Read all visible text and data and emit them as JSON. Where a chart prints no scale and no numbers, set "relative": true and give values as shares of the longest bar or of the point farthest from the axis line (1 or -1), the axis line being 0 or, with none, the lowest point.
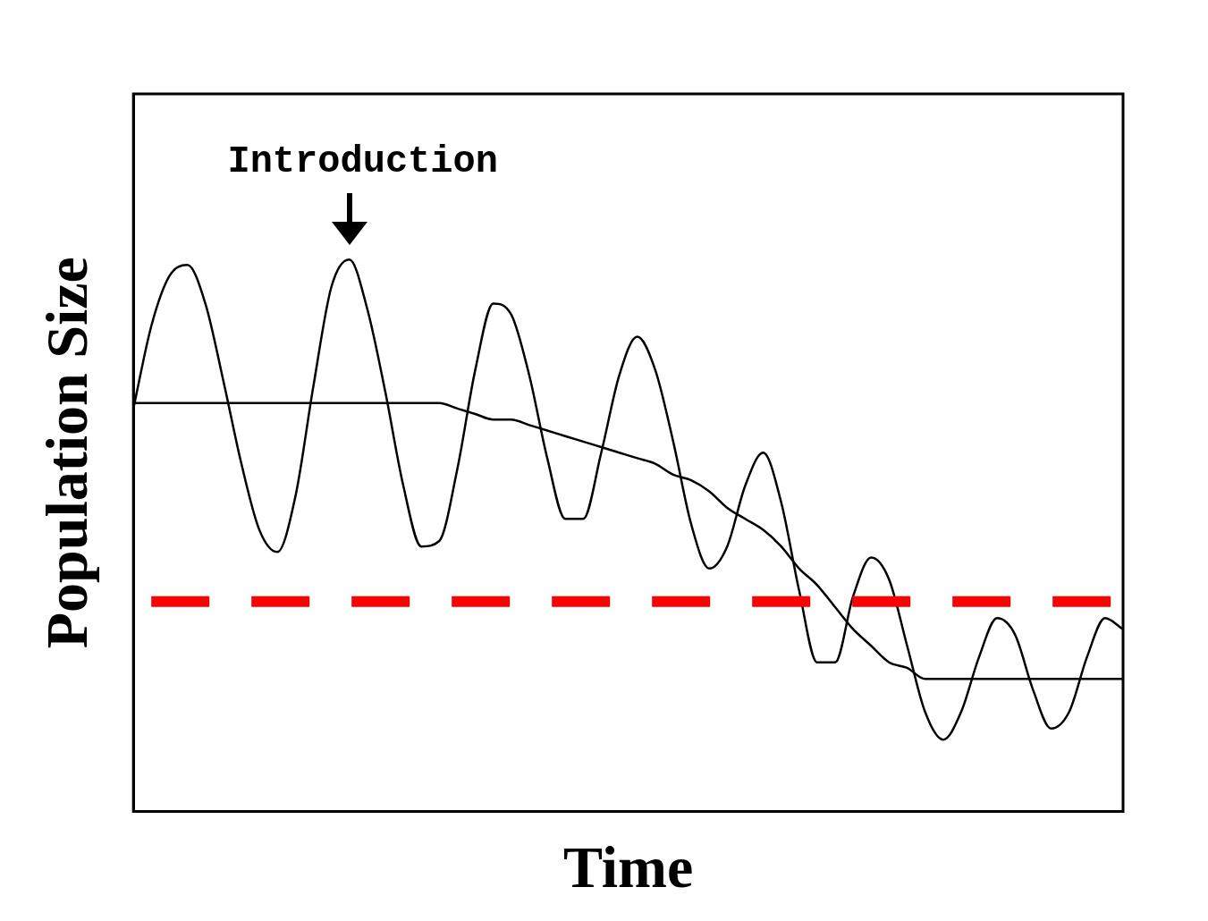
{
  "chart_data": {
    "type": "line",
    "xlabel": "Time",
    "ylabel": "Population Size",
    "relative": true,
    "legend": false,
    "grid": false,
    "marker": "none",
    "line_style": "solid",
    "categories": [
      null,
      null,
      null,
      null,
      null,
      null,
      null,
      null,
      null,
      null,
      null,
      null,
      null,
      null,
      null,
      null,
      null,
      null,
      null,
      null,
      null,
      null,
      null,
      null,
      null,
      null,
      null,
      null,
      null,
      null,
      null,
      null,
      null,
      null,
      null,
      null,
      null,
      null,
      null,
      null,
      null,
      null,
      null,
      null,
      null,
      null,
      null,
      null,
      null,
      null,
      null,
      null,
      null,
      null,
      null,
      null
    ],
    "series": [
      {
        "color": "#000000",
        "values": [
          0.73,
          0.88,
          0.97,
          0.99,
          0.92,
          0.78,
          0.63,
          0.51,
          0.47,
          0.57,
          0.77,
          0.95,
          1.0,
          0.91,
          0.76,
          0.59,
          0.48,
          0.49,
          0.62,
          0.8,
          0.92,
          0.9,
          0.79,
          0.64,
          0.53,
          0.53,
          0.65,
          0.79,
          0.86,
          0.8,
          0.67,
          0.52,
          0.44,
          0.48,
          0.59,
          0.65,
          0.56,
          0.4,
          0.27,
          0.27,
          0.39,
          0.46,
          0.42,
          0.3,
          0.18,
          0.13,
          0.18,
          0.28,
          0.35,
          0.32,
          0.22,
          0.15,
          0.18,
          0.28,
          0.35,
          0.33
        ]
      },
      {
        "color": "#000000",
        "values": [
          0.74,
          0.74,
          0.74,
          0.74,
          0.74,
          0.74,
          0.74,
          0.74,
          0.74,
          0.74,
          0.74,
          0.74,
          0.74,
          0.74,
          0.74,
          0.74,
          0.74,
          0.74,
          0.73,
          0.72,
          0.71,
          0.71,
          0.7,
          0.69,
          0.68,
          0.67,
          0.66,
          0.65,
          0.64,
          0.63,
          0.61,
          0.6,
          0.58,
          0.55,
          0.53,
          0.51,
          0.48,
          0.44,
          0.41,
          0.37,
          0.33,
          0.3,
          0.27,
          0.26,
          0.24,
          0.24,
          0.24,
          0.24,
          0.24,
          0.24,
          0.24,
          0.24,
          0.24,
          0.24,
          0.24,
          0.24
        ]
      }
    ],
    "ref_lines": [
      {
        "axis": "y",
        "value": 0.38,
        "color": "#ff0000",
        "line_style": "dashed"
      }
    ],
    "annotations": [
      "Introduction"
    ]
  }
}
